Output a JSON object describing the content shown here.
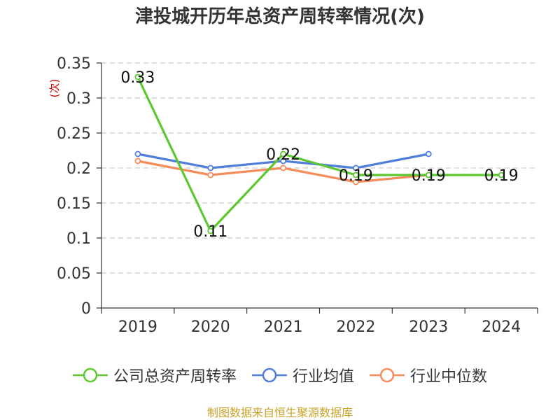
{
  "title": "津投城开历年总资产周转率情况(次)",
  "source": "制图数据来自恒生聚源数据库",
  "colors": {
    "company": "#5cc72e",
    "industry_avg": "#4f7fda",
    "industry_median": "#f58c5a",
    "grid": "#cccccc",
    "axis": "#333333",
    "ylabel": "#cc0000"
  },
  "chart_data": {
    "type": "line",
    "title": "津投城开历年总资产周转率情况(次)",
    "ylabel": "(次)",
    "xlabel": "",
    "categories": [
      "2019",
      "2020",
      "2021",
      "2022",
      "2023",
      "2024"
    ],
    "ylim": [
      0,
      0.35
    ],
    "yticks": [
      "0",
      "0.05",
      "0.1",
      "0.15",
      "0.2",
      "0.25",
      "0.3",
      "0.35"
    ],
    "grid": true,
    "legend_position": "bottom",
    "series": [
      {
        "name": "公司总资产周转率",
        "color": "#5cc72e",
        "values": [
          0.33,
          0.11,
          0.22,
          0.19,
          0.19,
          0.19
        ],
        "labels": [
          "0.33",
          "0.11",
          "0.22",
          "0.19",
          "0.19",
          "0.19"
        ]
      },
      {
        "name": "行业均值",
        "color": "#4f7fda",
        "values": [
          0.22,
          0.2,
          0.21,
          0.2,
          0.22,
          null
        ]
      },
      {
        "name": "行业中位数",
        "color": "#f58c5a",
        "values": [
          0.21,
          0.19,
          0.2,
          0.18,
          0.19,
          null
        ]
      }
    ]
  }
}
